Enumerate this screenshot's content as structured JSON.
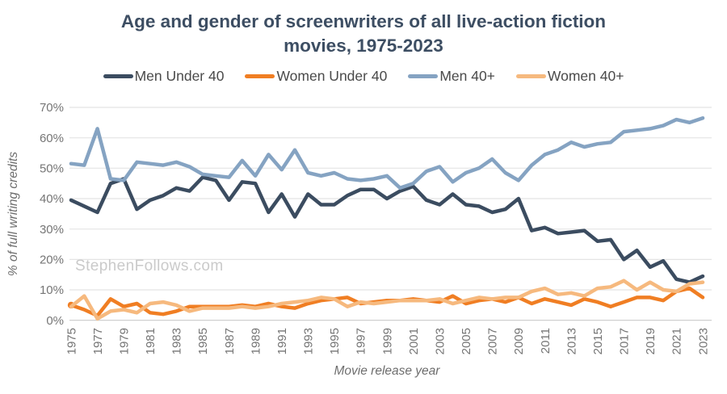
{
  "page": {
    "background": "#ffffff"
  },
  "title_lines": [
    "Age and gender of screenwriters of all live-action fiction",
    "movies, 1975-2023"
  ],
  "watermark": "StephenFollows.com",
  "chart_data": {
    "type": "line",
    "title": "Age and gender of screenwriters of all live-action fiction movies, 1975-2023",
    "xlabel": "Movie release year",
    "ylabel": "% of full writing credits",
    "ylim": [
      0,
      70
    ],
    "grid": true,
    "legend_position": "top",
    "title_color": "#3d4e63",
    "tick_color": "#757575",
    "grid_color": "#e4e4e4",
    "axis_line_color": "#c9c9c9",
    "yticks": [
      0,
      10,
      20,
      30,
      40,
      50,
      60,
      70
    ],
    "ytick_suffix": "%",
    "xticks": [
      1975,
      1977,
      1979,
      1981,
      1983,
      1985,
      1987,
      1989,
      1991,
      1993,
      1995,
      1997,
      1999,
      2001,
      2003,
      2005,
      2007,
      2009,
      2011,
      2013,
      2015,
      2017,
      2019,
      2021,
      2023
    ],
    "x": [
      1975,
      1976,
      1977,
      1978,
      1979,
      1980,
      1981,
      1982,
      1983,
      1984,
      1985,
      1986,
      1987,
      1988,
      1989,
      1990,
      1991,
      1992,
      1993,
      1994,
      1995,
      1996,
      1997,
      1998,
      1999,
      2000,
      2001,
      2002,
      2003,
      2004,
      2005,
      2006,
      2007,
      2008,
      2009,
      2010,
      2011,
      2012,
      2013,
      2014,
      2015,
      2016,
      2017,
      2018,
      2019,
      2020,
      2021,
      2022,
      2023
    ],
    "series": [
      {
        "name": "Men Under 40",
        "color": "#3b4c60",
        "values": [
          39.5,
          37.5,
          35.5,
          45,
          46.5,
          36.5,
          39.5,
          41,
          43.5,
          42.5,
          47,
          46,
          39.5,
          45.5,
          45,
          35.5,
          41.5,
          34,
          41.5,
          38,
          38,
          41,
          43,
          43,
          40,
          42.5,
          44,
          39.5,
          38,
          41.5,
          38,
          37.5,
          35.5,
          36.5,
          40,
          29.5,
          30.5,
          28.5,
          29,
          29.5,
          26,
          26.5,
          20,
          23,
          17.5,
          19.5,
          13.5,
          12.5,
          14.5
        ]
      },
      {
        "name": "Women Under 40",
        "color": "#f07e23",
        "start_marker": true,
        "values": [
          5,
          3.5,
          1.5,
          7,
          4.5,
          5.5,
          2.5,
          2,
          3,
          4.5,
          4.5,
          4.5,
          4.5,
          5,
          4.5,
          5.5,
          4.5,
          4,
          5.5,
          6.5,
          7,
          7.5,
          5.5,
          6,
          6.5,
          6.5,
          7,
          6.5,
          6,
          8,
          5.5,
          6.5,
          7,
          6,
          7.5,
          5.5,
          7,
          6,
          5,
          7,
          6,
          4.5,
          6,
          7.5,
          7.5,
          6.5,
          9.5,
          10.5,
          7.5
        ]
      },
      {
        "name": "Men 40+",
        "color": "#85a3c2",
        "values": [
          51.5,
          51,
          63,
          46.5,
          46,
          52,
          51.5,
          51,
          52,
          50.5,
          48,
          47.5,
          47,
          52.5,
          47.5,
          54.5,
          49.5,
          56,
          48.5,
          47.5,
          48.5,
          46.5,
          46,
          46.5,
          47.5,
          43.5,
          45,
          49,
          50.5,
          45.5,
          48.5,
          50,
          53,
          48.5,
          46,
          51,
          54.5,
          56,
          58.5,
          57,
          58,
          58.5,
          62,
          62.5,
          63,
          64,
          66,
          65,
          66.5
        ]
      },
      {
        "name": "Women 40+",
        "color": "#f6b97e",
        "values": [
          4.5,
          8,
          0.5,
          3,
          3.5,
          2.5,
          5.5,
          6,
          5,
          3,
          4,
          4,
          4,
          4.5,
          4,
          4.5,
          5.5,
          6,
          6.5,
          7.5,
          7,
          4.5,
          6,
          5.5,
          6,
          6.5,
          6.5,
          6.5,
          7,
          5.5,
          6.5,
          7.5,
          7,
          7.5,
          7.5,
          9.5,
          10.5,
          8.5,
          9,
          8,
          10.5,
          11,
          13,
          10,
          12.5,
          10,
          9.5,
          12,
          12.5
        ]
      }
    ]
  }
}
